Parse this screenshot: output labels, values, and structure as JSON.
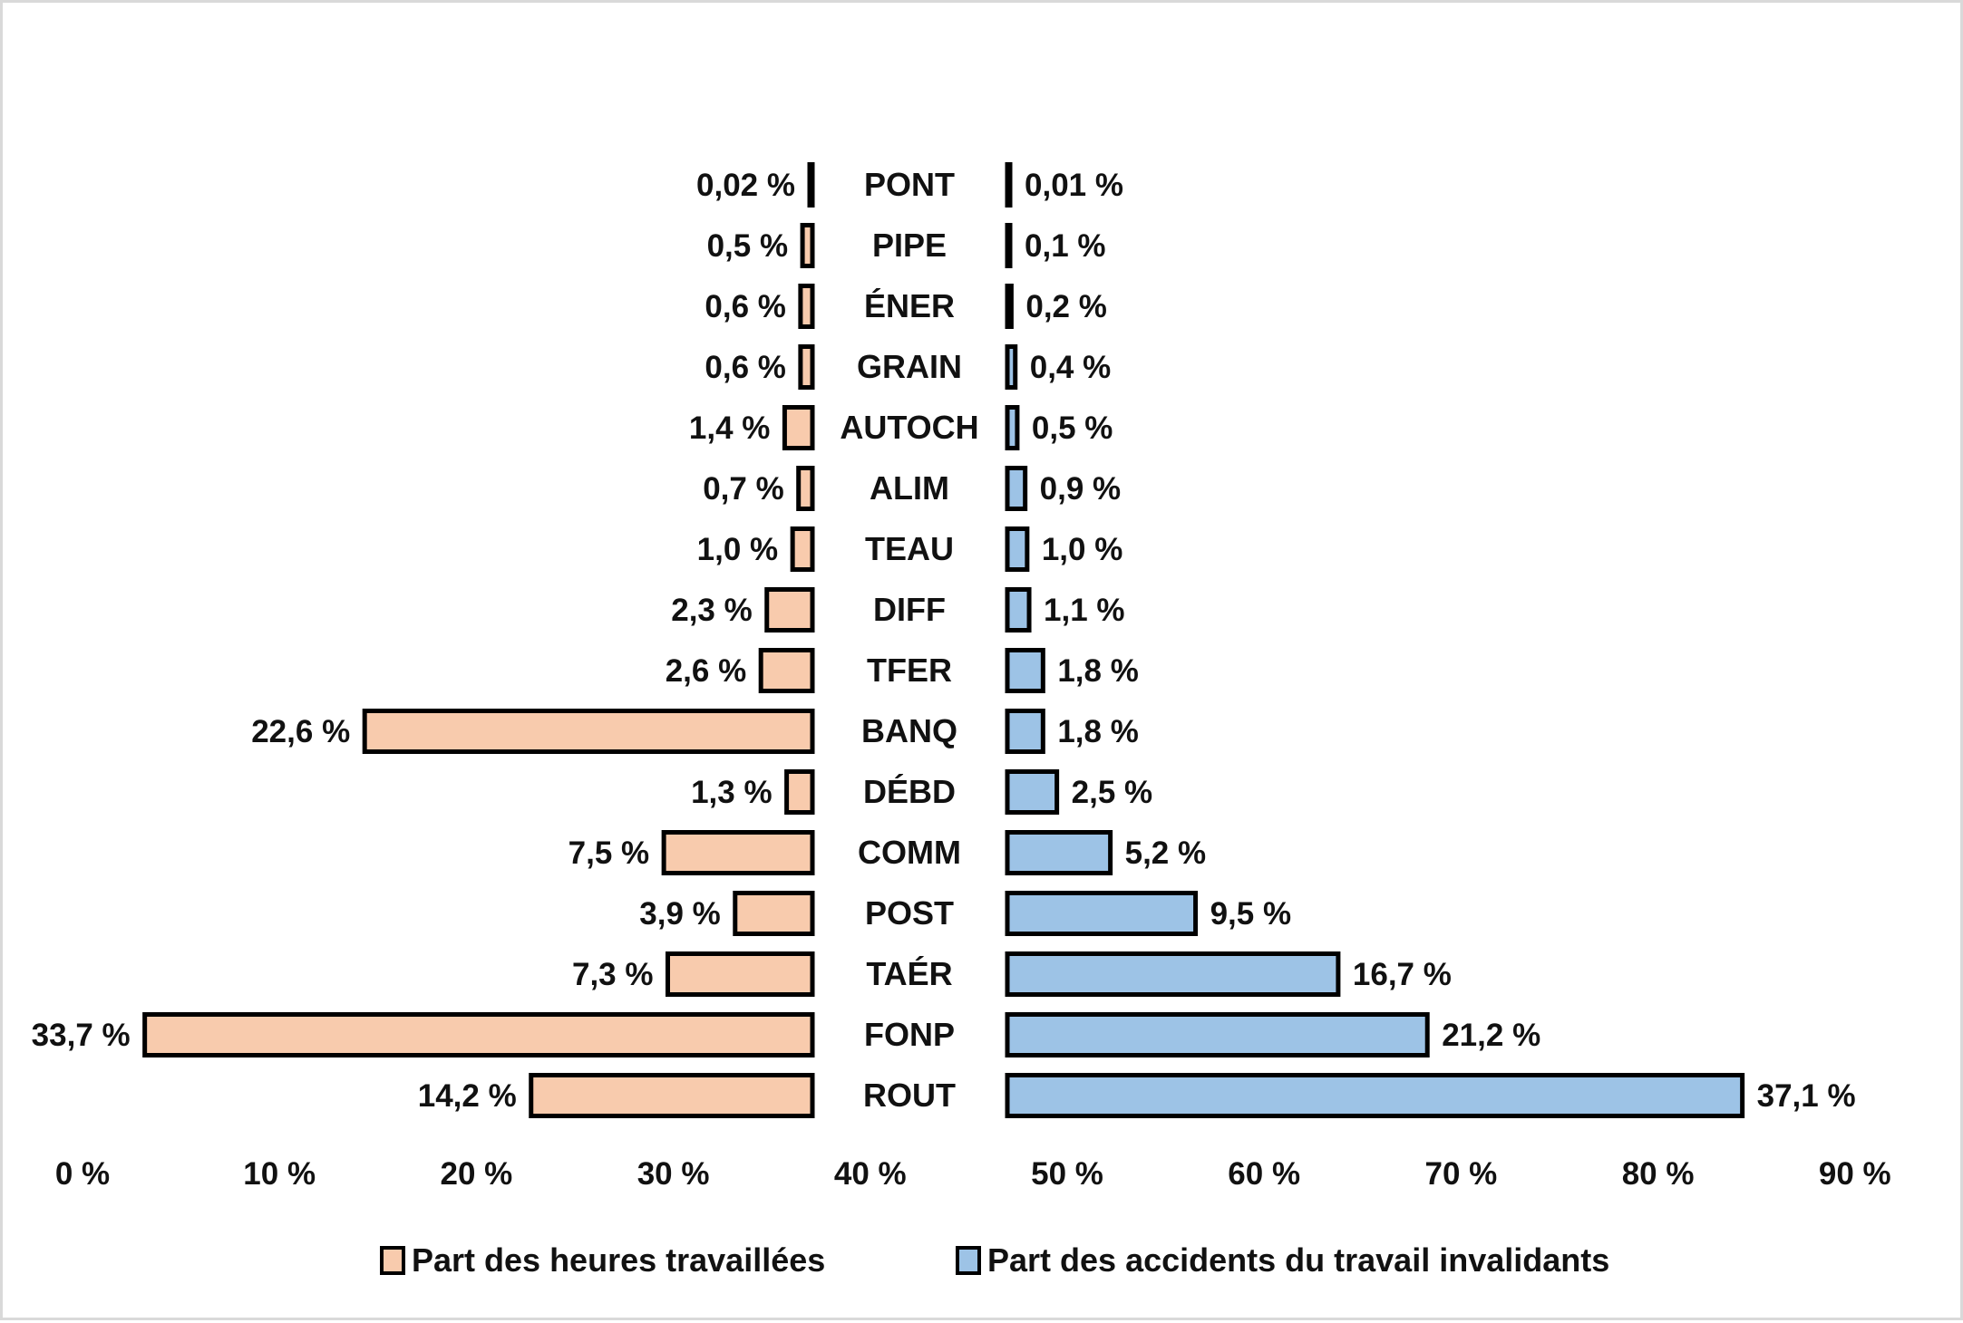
{
  "chart_data": {
    "type": "bar",
    "orientation": "horizontal-butterfly",
    "categories": [
      "PONT",
      "PIPE",
      "ÉNER",
      "GRAIN",
      "AUTOCH",
      "ALIM",
      "TEAU",
      "DIFF",
      "TFER",
      "BANQ",
      "DÉBD",
      "COMM",
      "POST",
      "TAÉR",
      "FONP",
      "ROUT"
    ],
    "series": [
      {
        "name": "Part des heures travaillées",
        "side": "left",
        "color": "#f8cbad",
        "values": [
          0.02,
          0.5,
          0.6,
          0.6,
          1.4,
          0.7,
          1.0,
          2.3,
          2.6,
          22.6,
          1.3,
          7.5,
          3.9,
          7.3,
          33.7,
          14.2
        ],
        "labels": [
          "0,02 %",
          "0,5 %",
          "0,6 %",
          "0,6 %",
          "1,4 %",
          "0,7 %",
          "1,0 %",
          "2,3 %",
          "2,6 %",
          "22,6 %",
          "1,3 %",
          "7,5 %",
          "3,9 %",
          "7,3 %",
          "33,7 %",
          "14,2 %"
        ]
      },
      {
        "name": "Part des accidents du travail invalidants",
        "side": "right",
        "color": "#9dc3e6",
        "values": [
          0.01,
          0.1,
          0.2,
          0.4,
          0.5,
          0.9,
          1.0,
          1.1,
          1.8,
          1.8,
          2.5,
          5.2,
          9.5,
          16.7,
          21.2,
          37.1
        ],
        "labels": [
          "0,01 %",
          "0,1 %",
          "0,2 %",
          "0,4 %",
          "0,5 %",
          "0,9 %",
          "1,0 %",
          "1,1 %",
          "1,8 %",
          "1,8 %",
          "2,5 %",
          "5,2 %",
          "9,5 %",
          "16,7 %",
          "21,2 %",
          "37,1 %"
        ]
      }
    ],
    "x_ticks": [
      "0 %",
      "10 %",
      "20 %",
      "30 %",
      "40 %",
      "50 %",
      "60 %",
      "70 %",
      "80 %",
      "90 %"
    ],
    "xlim": [
      0,
      90
    ],
    "legend_position": "bottom",
    "grid": false
  }
}
